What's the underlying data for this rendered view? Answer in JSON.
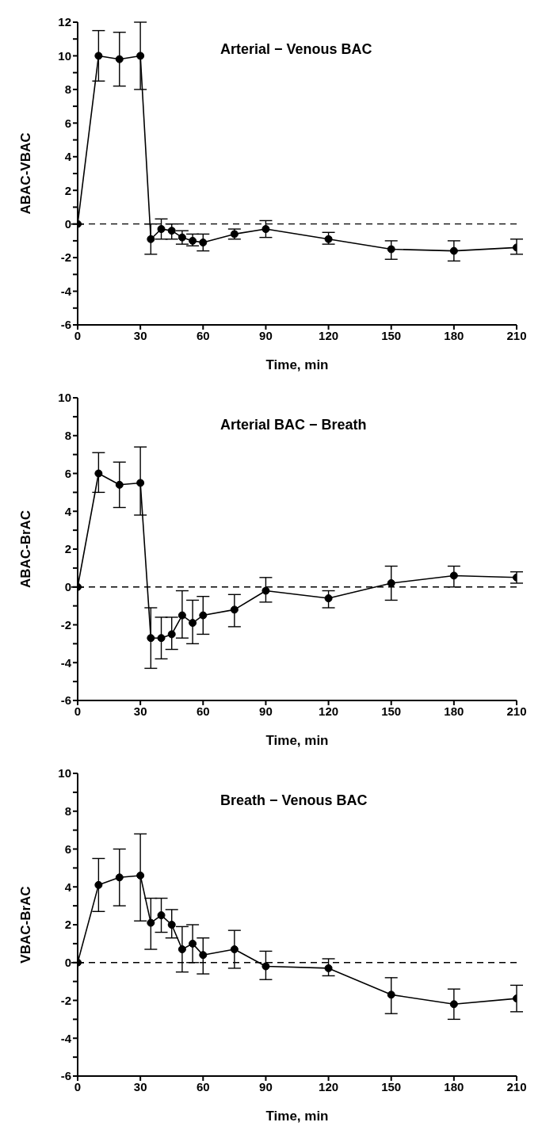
{
  "chart_data": [
    {
      "type": "line",
      "title": "Arterial − Venous BAC",
      "xlabel": "Time, min",
      "ylabel": "ABAC-VBAC",
      "x": [
        0,
        10,
        20,
        30,
        35,
        40,
        45,
        50,
        55,
        60,
        75,
        90,
        120,
        150,
        180,
        210
      ],
      "xlim": [
        0,
        210
      ],
      "xticks": [
        0,
        30,
        60,
        90,
        120,
        150,
        180,
        210
      ],
      "ylim": [
        -6,
        12
      ],
      "yticks": [
        -6,
        {
          "value": -5,
          "label": null
        },
        -4,
        {
          "value": -3,
          "label": null
        },
        -2,
        {
          "value": -1,
          "label": null
        },
        0,
        {
          "value": 1,
          "label": null
        },
        2,
        {
          "value": 3,
          "label": null
        },
        4,
        {
          "value": 5,
          "label": null
        },
        6,
        {
          "value": 7,
          "label": null
        },
        8,
        {
          "value": 9,
          "label": null
        },
        10,
        {
          "value": 11,
          "label": null
        },
        12
      ],
      "marker": "circle",
      "line_style": "solid",
      "grid": false,
      "legend": false,
      "series": [
        {
          "color": "#000000",
          "values": [
            0,
            10,
            9.8,
            10,
            -0.9,
            -0.3,
            -0.4,
            -0.8,
            -1.0,
            -1.1,
            -0.6,
            -0.3,
            -0.9,
            -1.5,
            -1.6,
            -1.4
          ],
          "errors": [
            null,
            [
              8.5,
              11.5
            ],
            [
              8.2,
              11.4
            ],
            [
              8,
              12
            ],
            [
              -1.8,
              0
            ],
            [
              -0.9,
              0.3
            ],
            [
              -0.9,
              0
            ],
            [
              -1.2,
              -0.4
            ],
            [
              -1.3,
              -0.6
            ],
            [
              -1.6,
              -0.6
            ],
            [
              -0.9,
              -0.3
            ],
            [
              -0.8,
              0.2
            ],
            [
              -1.2,
              -0.5
            ],
            [
              -2.1,
              -1.0
            ],
            [
              -2.2,
              -1.0
            ],
            [
              -1.8,
              -0.9
            ]
          ]
        }
      ],
      "ref_lines": [
        {
          "axis": "y",
          "value": 0,
          "line_style": "dashed",
          "color": "#000000"
        }
      ]
    },
    {
      "type": "line",
      "title": "Arterial BAC − Breath",
      "xlabel": "Time, min",
      "ylabel": "ABAC-BrAC",
      "x": [
        0,
        10,
        20,
        30,
        35,
        40,
        45,
        50,
        55,
        60,
        75,
        90,
        120,
        150,
        180,
        210
      ],
      "xlim": [
        0,
        210
      ],
      "xticks": [
        0,
        30,
        60,
        90,
        120,
        150,
        180,
        210
      ],
      "ylim": [
        -6,
        10
      ],
      "yticks": [
        -6,
        {
          "value": -5,
          "label": null
        },
        -4,
        {
          "value": -3,
          "label": null
        },
        -2,
        {
          "value": -1,
          "label": null
        },
        0,
        {
          "value": 1,
          "label": null
        },
        2,
        {
          "value": 3,
          "label": null
        },
        4,
        {
          "value": 5,
          "label": null
        },
        6,
        {
          "value": 7,
          "label": null
        },
        8,
        {
          "value": 9,
          "label": null
        },
        10
      ],
      "marker": "circle",
      "line_style": "solid",
      "grid": false,
      "legend": false,
      "series": [
        {
          "color": "#000000",
          "values": [
            0,
            6,
            5.4,
            5.5,
            -2.7,
            -2.7,
            -2.5,
            -1.5,
            -1.9,
            -1.5,
            -1.2,
            -0.2,
            -0.6,
            0.2,
            0.6,
            0.5
          ],
          "errors": [
            null,
            [
              5,
              7.1
            ],
            [
              4.2,
              6.6
            ],
            [
              3.8,
              7.4
            ],
            [
              -4.3,
              -1.1
            ],
            [
              -3.8,
              -1.6
            ],
            [
              -3.3,
              -1.6
            ],
            [
              -2.7,
              -0.2
            ],
            [
              -3,
              -0.7
            ],
            [
              -2.5,
              -0.5
            ],
            [
              -2.1,
              -0.4
            ],
            [
              -0.8,
              0.5
            ],
            [
              -1.1,
              -0.2
            ],
            [
              -0.7,
              1.1
            ],
            [
              0,
              1.1
            ],
            [
              0.2,
              0.8
            ]
          ]
        }
      ],
      "ref_lines": [
        {
          "axis": "y",
          "value": 0,
          "line_style": "dashed",
          "color": "#000000"
        }
      ]
    },
    {
      "type": "line",
      "title": "Breath − Venous BAC",
      "xlabel": "Time, min",
      "ylabel": "VBAC-BrAC",
      "x": [
        0,
        10,
        20,
        30,
        35,
        40,
        45,
        50,
        55,
        60,
        75,
        90,
        120,
        150,
        180,
        210
      ],
      "xlim": [
        0,
        210
      ],
      "xticks": [
        0,
        30,
        60,
        90,
        120,
        150,
        180,
        210
      ],
      "ylim": [
        -6,
        10
      ],
      "yticks": [
        -6,
        {
          "value": -5,
          "label": null
        },
        -4,
        {
          "value": -3,
          "label": null
        },
        -2,
        {
          "value": -1,
          "label": null
        },
        0,
        {
          "value": 1,
          "label": null
        },
        2,
        {
          "value": 3,
          "label": null
        },
        4,
        {
          "value": 5,
          "label": null
        },
        6,
        {
          "value": 7,
          "label": null
        },
        8,
        {
          "value": 9,
          "label": null
        },
        10
      ],
      "marker": "circle",
      "line_style": "solid",
      "grid": false,
      "legend": false,
      "series": [
        {
          "color": "#000000",
          "values": [
            0,
            4.1,
            4.5,
            4.6,
            2.1,
            2.5,
            2.0,
            0.7,
            1.0,
            0.4,
            0.7,
            -0.2,
            -0.3,
            -1.7,
            -2.2,
            -1.9
          ],
          "errors": [
            null,
            [
              2.7,
              5.5
            ],
            [
              3,
              6
            ],
            [
              2.2,
              6.8
            ],
            [
              0.7,
              3.4
            ],
            [
              1.6,
              3.4
            ],
            [
              1.3,
              2.8
            ],
            [
              -0.5,
              1.9
            ],
            [
              0,
              2
            ],
            [
              -0.6,
              1.3
            ],
            [
              -0.3,
              1.7
            ],
            [
              -0.9,
              0.6
            ],
            [
              -0.7,
              0.2
            ],
            [
              -2.7,
              -0.8
            ],
            [
              -3,
              -1.4
            ],
            [
              -2.6,
              -1.2
            ]
          ]
        }
      ],
      "ref_lines": [
        {
          "axis": "y",
          "value": 0,
          "line_style": "dashed",
          "color": "#000000"
        }
      ]
    }
  ]
}
